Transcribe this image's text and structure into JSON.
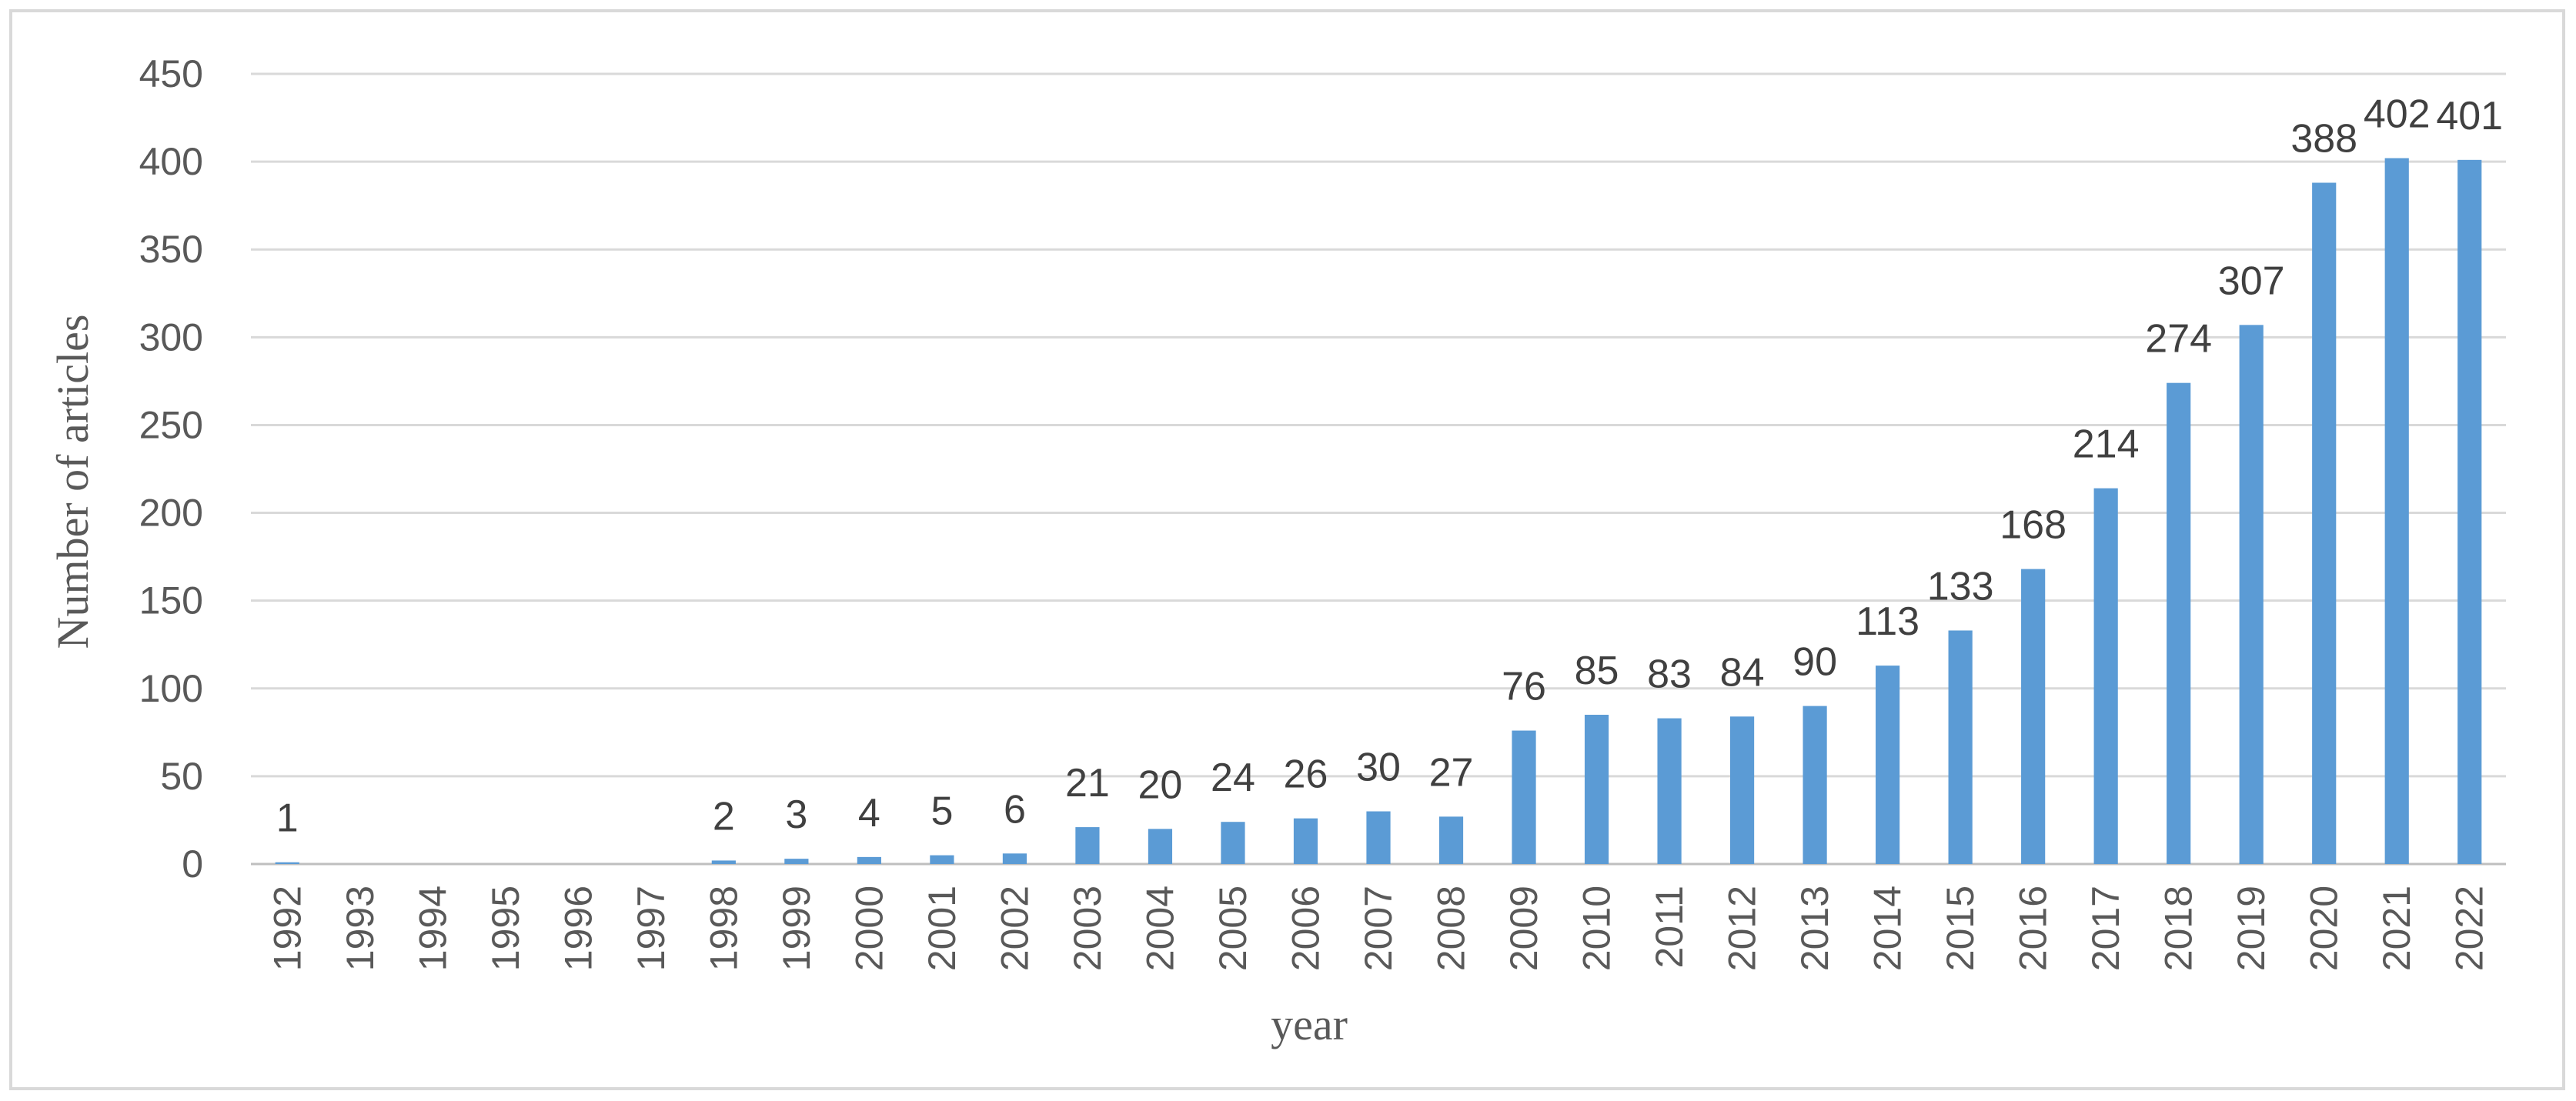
{
  "chart_data": {
    "type": "bar",
    "title": "",
    "xlabel": "year",
    "ylabel": "Number of articles",
    "ylim": [
      0,
      450
    ],
    "yticks": [
      "0",
      "50",
      "100",
      "150",
      "200",
      "250",
      "300",
      "350",
      "400",
      "450"
    ],
    "grid": true,
    "bar_color": "#5b9bd5",
    "categories": [
      "1992",
      "1993",
      "1994",
      "1995",
      "1996",
      "1997",
      "1998",
      "1999",
      "2000",
      "2001",
      "2002",
      "2003",
      "2004",
      "2005",
      "2006",
      "2007",
      "2008",
      "2009",
      "2010",
      "2011",
      "2012",
      "2013",
      "2014",
      "2015",
      "2016",
      "2017",
      "2018",
      "2019",
      "2020",
      "2021",
      "2022"
    ],
    "values": [
      1,
      0,
      0,
      0,
      0,
      0,
      2,
      3,
      4,
      5,
      6,
      21,
      20,
      24,
      26,
      30,
      27,
      76,
      85,
      83,
      84,
      90,
      113,
      133,
      168,
      214,
      274,
      307,
      388,
      402,
      401
    ],
    "data_labels": [
      "1",
      "",
      "",
      "",
      "",
      "",
      "2",
      "3",
      "4",
      "5",
      "6",
      "21",
      "20",
      "24",
      "26",
      "30",
      "27",
      "76",
      "85",
      "83",
      "84",
      "90",
      "113",
      "133",
      "168",
      "214",
      "274",
      "307",
      "388",
      "402",
      "401"
    ]
  }
}
